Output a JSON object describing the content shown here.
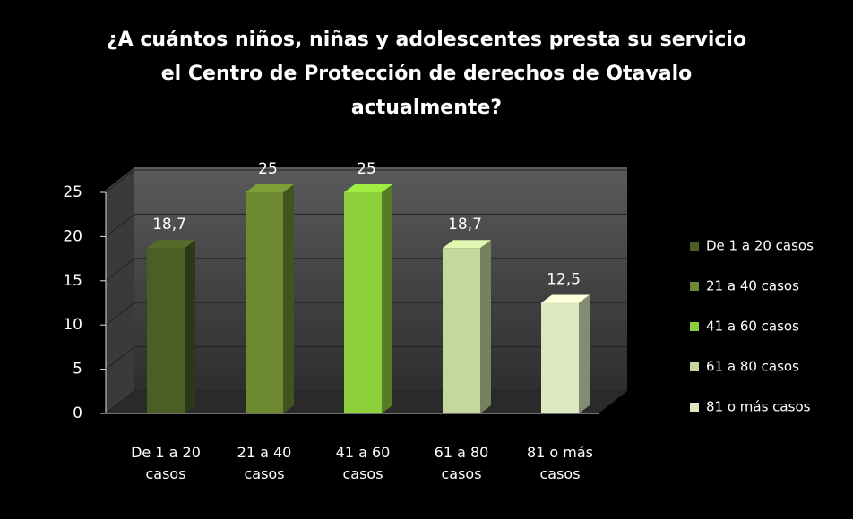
{
  "chart_data": {
    "type": "bar",
    "title": "¿A cuántos niños, niñas y adolescentes presta su servicio el Centro de Protección de derechos de Otavalo actualmente?",
    "categories": [
      "De 1 a 20 casos",
      "21 a 40 casos",
      "41 a 60 casos",
      "61 a 80 casos",
      "81 o más casos"
    ],
    "values": [
      18.7,
      25,
      25,
      18.7,
      12.5
    ],
    "value_labels": [
      "18,7",
      "25",
      "25",
      "18,7",
      "12,5"
    ],
    "colors": [
      "#4b5f24",
      "#6e8a30",
      "#8ccf3a",
      "#c3d89a",
      "#dce8c0"
    ],
    "ylim": [
      0,
      25
    ],
    "yticks": [
      0,
      5,
      10,
      15,
      20,
      25
    ],
    "grid": true,
    "legend": "right"
  }
}
